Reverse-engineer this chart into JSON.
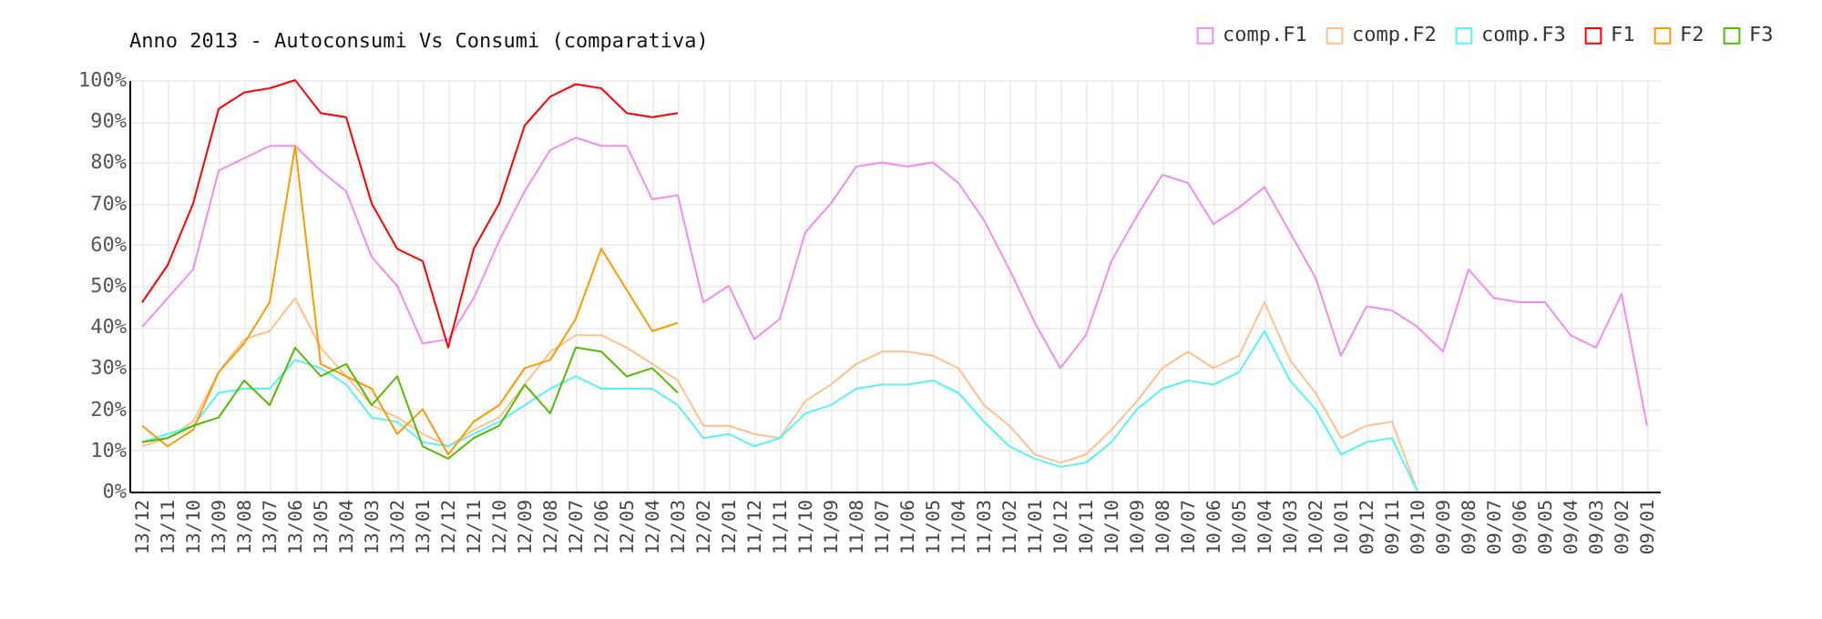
{
  "chart_data": {
    "type": "line",
    "title": "Anno 2013 - Autoconsumi Vs Consumi (comparativa)",
    "categories": [
      "13/12",
      "13/11",
      "13/10",
      "13/09",
      "13/08",
      "13/07",
      "13/06",
      "13/05",
      "13/04",
      "13/03",
      "13/02",
      "13/01",
      "12/12",
      "12/11",
      "12/10",
      "12/09",
      "12/08",
      "12/07",
      "12/06",
      "12/05",
      "12/04",
      "12/03",
      "12/02",
      "12/01",
      "11/12",
      "11/11",
      "11/10",
      "11/09",
      "11/08",
      "11/07",
      "11/06",
      "11/05",
      "11/04",
      "11/03",
      "11/02",
      "11/01",
      "10/12",
      "10/11",
      "10/10",
      "10/09",
      "10/08",
      "10/07",
      "10/06",
      "10/05",
      "10/04",
      "10/03",
      "10/02",
      "10/01",
      "09/12",
      "09/11",
      "09/10",
      "09/09",
      "09/08",
      "09/07",
      "09/06",
      "09/05",
      "09/04",
      "09/03",
      "09/02",
      "09/01"
    ],
    "series": [
      {
        "name": "comp.F1",
        "color": "#f28cf2",
        "values": [
          40,
          47,
          54,
          78,
          81,
          84,
          84,
          78,
          73,
          57,
          50,
          36,
          37,
          47,
          61,
          73,
          83,
          86,
          84,
          84,
          71,
          72,
          46,
          50,
          37,
          42,
          63,
          70,
          79,
          80,
          79,
          80,
          75,
          66,
          54,
          41,
          30,
          38,
          56,
          67,
          77,
          75,
          65,
          69,
          74,
          63,
          52,
          33,
          45,
          44,
          40,
          34,
          54,
          47,
          46,
          46,
          38,
          35,
          48,
          16
        ]
      },
      {
        "name": "comp.F2",
        "color": "#ffc08c",
        "values": [
          11,
          13,
          17,
          29,
          37,
          39,
          47,
          35,
          28,
          21,
          18,
          14,
          11,
          15,
          18,
          26,
          34,
          38,
          38,
          35,
          31,
          27,
          16,
          16,
          14,
          13,
          22,
          26,
          31,
          34,
          34,
          33,
          30,
          21,
          16,
          9,
          7,
          9,
          15,
          22,
          30,
          34,
          30,
          33,
          46,
          32,
          24,
          13,
          16,
          17,
          0,
          null,
          null,
          null,
          null,
          null,
          null,
          null,
          null,
          null
        ]
      },
      {
        "name": "comp.F3",
        "color": "#55f5f5",
        "values": [
          12,
          14,
          16,
          24,
          25,
          25,
          32,
          30,
          26,
          18,
          17,
          12,
          11,
          14,
          17,
          21,
          25,
          28,
          25,
          25,
          25,
          21,
          13,
          14,
          11,
          13,
          19,
          21,
          25,
          26,
          26,
          27,
          24,
          17,
          11,
          8,
          6,
          7,
          12,
          20,
          25,
          27,
          26,
          29,
          39,
          27,
          20,
          9,
          12,
          13,
          0,
          null,
          null,
          null,
          null,
          null,
          null,
          null,
          null,
          null
        ]
      },
      {
        "name": "F1",
        "color": "#ff0000",
        "values": [
          46,
          55,
          70,
          93,
          97,
          98,
          100,
          92,
          91,
          70,
          59,
          56,
          35,
          59,
          70,
          89,
          96,
          99,
          98,
          92,
          91,
          92,
          null,
          null,
          null,
          null,
          null,
          null,
          null,
          null,
          null,
          null,
          null,
          null,
          null,
          null,
          null,
          null,
          null,
          null,
          null,
          null,
          null,
          null,
          null,
          null,
          null,
          null,
          null,
          null,
          null,
          null,
          null,
          null,
          null,
          null,
          null,
          null,
          null,
          null
        ]
      },
      {
        "name": "F2",
        "color": "#ff9900",
        "values": [
          16,
          11,
          15,
          29,
          36,
          46,
          84,
          31,
          28,
          25,
          14,
          20,
          9,
          17,
          21,
          30,
          32,
          42,
          59,
          49,
          39,
          41,
          null,
          null,
          null,
          null,
          null,
          null,
          null,
          null,
          null,
          null,
          null,
          null,
          null,
          null,
          null,
          null,
          null,
          null,
          null,
          null,
          null,
          null,
          null,
          null,
          null,
          null,
          null,
          null,
          null,
          null,
          null,
          null,
          null,
          null,
          null,
          null,
          null,
          null
        ]
      },
      {
        "name": "F3",
        "color": "#55bb00",
        "values": [
          12,
          13,
          16,
          18,
          27,
          21,
          35,
          28,
          31,
          21,
          28,
          11,
          8,
          13,
          16,
          26,
          19,
          35,
          34,
          28,
          30,
          24,
          null,
          null,
          null,
          null,
          null,
          null,
          null,
          null,
          null,
          null,
          null,
          null,
          null,
          null,
          null,
          null,
          null,
          null,
          null,
          null,
          null,
          null,
          null,
          null,
          null,
          null,
          null,
          null,
          null,
          null,
          null,
          null,
          null,
          null,
          null,
          null,
          null,
          null
        ]
      }
    ],
    "ylim": [
      0,
      100
    ],
    "yticks": [
      {
        "value": 0,
        "label": "0%"
      },
      {
        "value": 10,
        "label": "10%"
      },
      {
        "value": 20,
        "label": "20%"
      },
      {
        "value": 30,
        "label": "30%"
      },
      {
        "value": 40,
        "label": "40%"
      },
      {
        "value": 50,
        "label": "50%"
      },
      {
        "value": 60,
        "label": "60%"
      },
      {
        "value": 70,
        "label": "70%"
      },
      {
        "value": 80,
        "label": "80%"
      },
      {
        "value": 90,
        "label": "90%"
      },
      {
        "value": 100,
        "label": "100%"
      }
    ],
    "grid": true,
    "legend": "top right"
  }
}
